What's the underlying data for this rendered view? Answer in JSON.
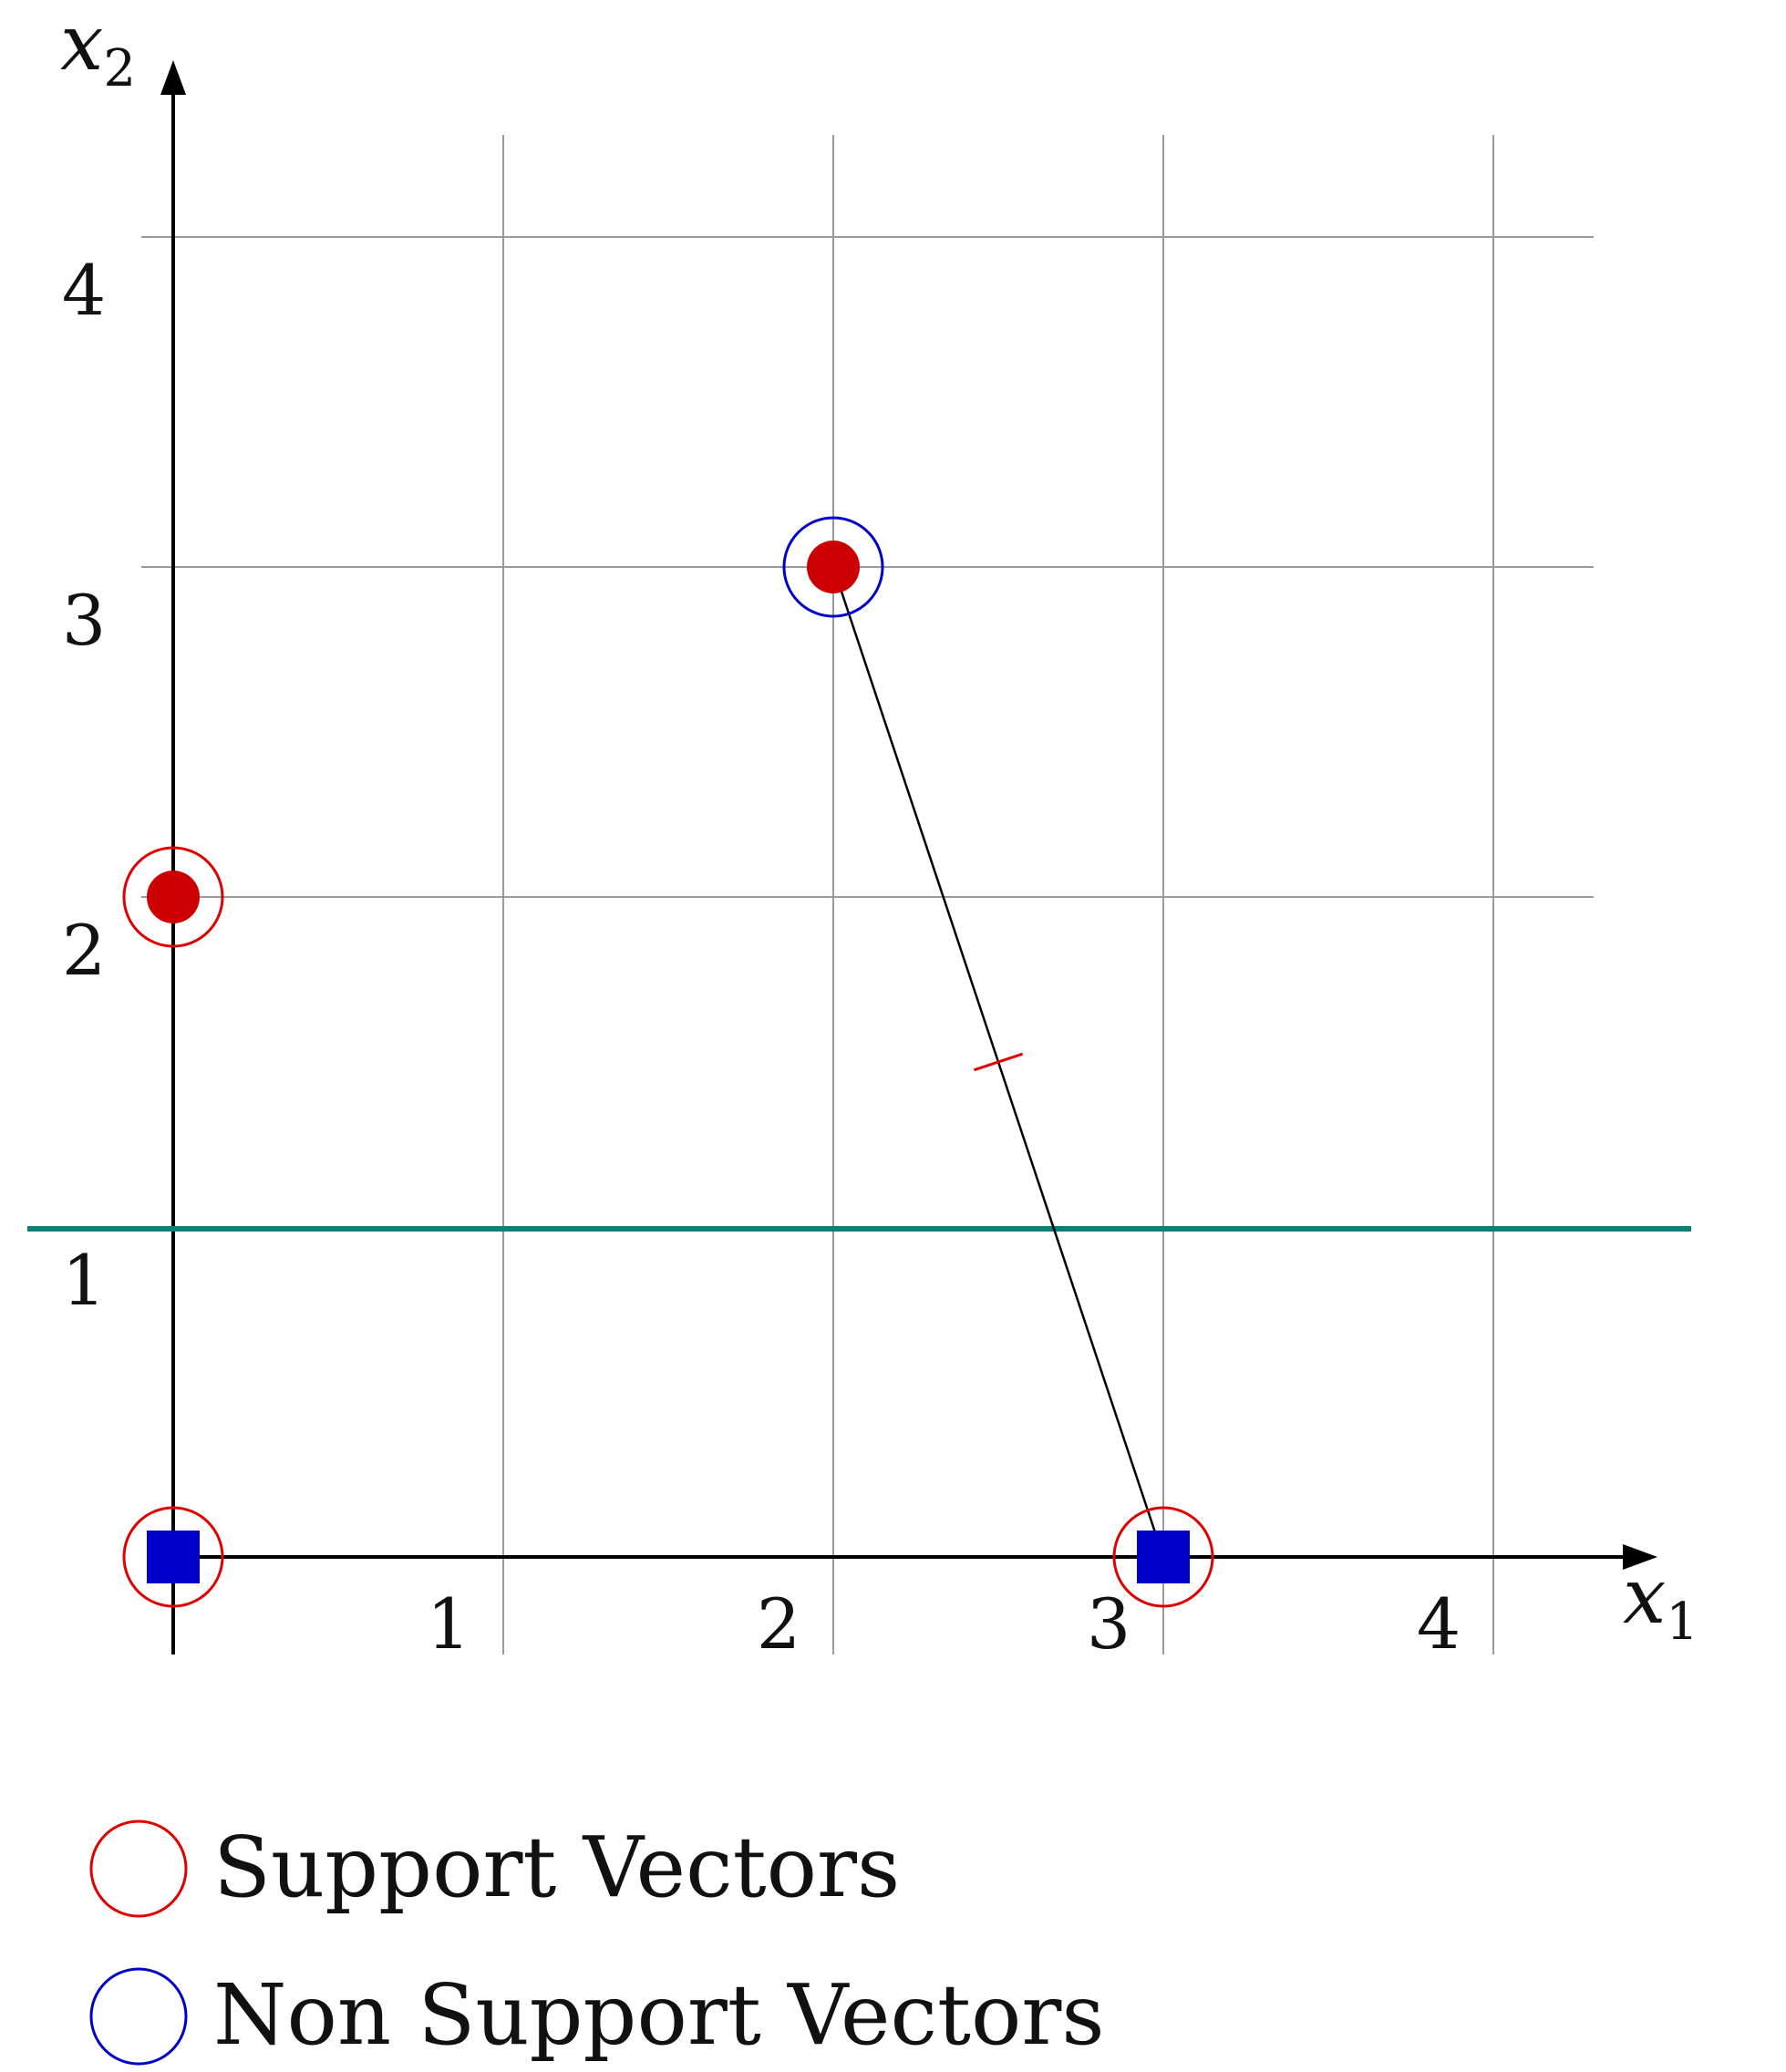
{
  "chart_data": {
    "type": "scatter",
    "xlabel": "x",
    "xlabel_sub": "1",
    "ylabel": "x",
    "ylabel_sub": "2",
    "xlim": [
      0,
      4.4
    ],
    "ylim": [
      0,
      4.4
    ],
    "x_ticks": [
      "1",
      "2",
      "3",
      "4"
    ],
    "y_ticks": [
      "1",
      "2",
      "3",
      "4"
    ],
    "grid": true,
    "points": [
      {
        "x": 0,
        "y": 2,
        "class": "red",
        "marker": "circle",
        "ring": "support"
      },
      {
        "x": 2,
        "y": 3,
        "class": "red",
        "marker": "circle",
        "ring": "non-support"
      },
      {
        "x": 0,
        "y": 0,
        "class": "blue",
        "marker": "square",
        "ring": "support"
      },
      {
        "x": 3,
        "y": 0,
        "class": "blue",
        "marker": "square",
        "ring": "support"
      }
    ],
    "decision_boundary": {
      "y": 1
    },
    "segment": {
      "from": [
        2,
        3
      ],
      "to": [
        3,
        0
      ],
      "midpoint_tick": true
    },
    "legend": [
      {
        "label": "Support Vectors",
        "ring": "support"
      },
      {
        "label": "Non Support Vectors",
        "ring": "non-support"
      }
    ],
    "legend_position": "bottom-left",
    "colors": {
      "red_point": "#cc0000",
      "blue_point": "#0000cc",
      "support_ring": "#e00000",
      "non_support_ring": "#0000cc",
      "boundary": "#0e7f7a",
      "grid": "#9a9a9a",
      "axis": "#000000",
      "segment": "#000000",
      "midpoint_tick": "#e00000"
    }
  }
}
